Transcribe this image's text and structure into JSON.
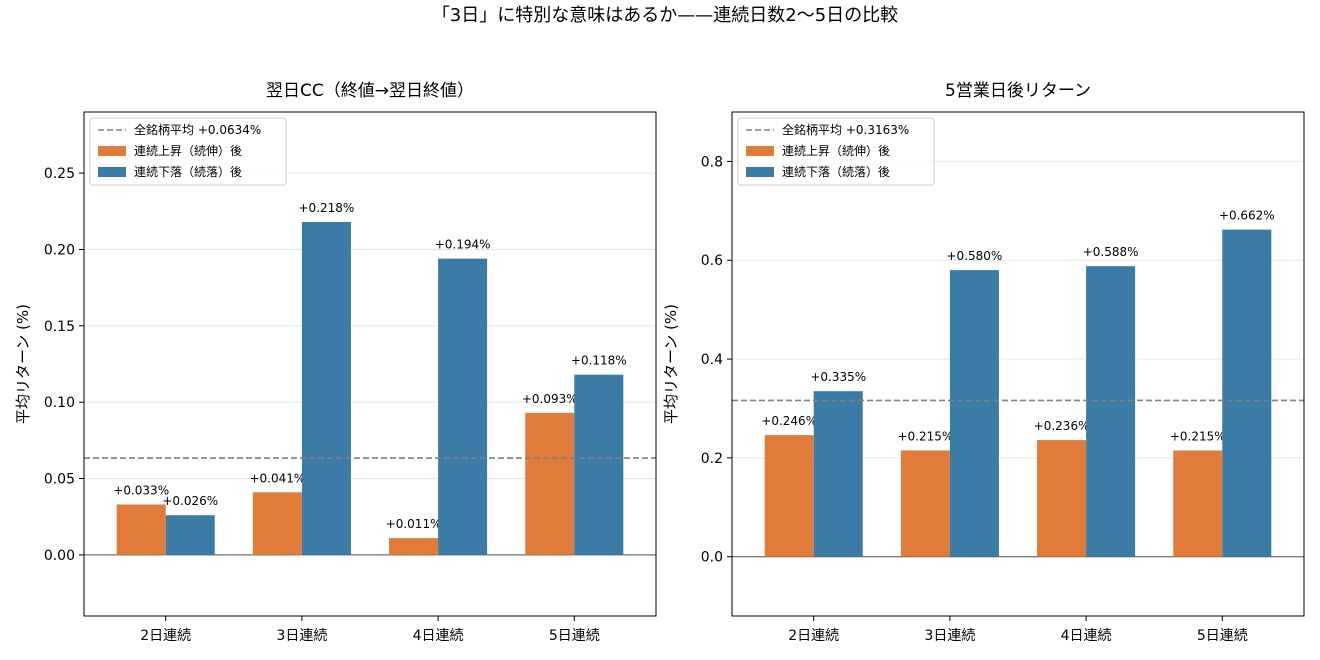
{
  "figure": {
    "title": "「3日」に特別な意味はあるか——連続日数2〜5日の比較"
  },
  "colors": {
    "up": "#e07b39",
    "down": "#3a7ca5",
    "mean_line": "#808080",
    "grid": "#e6e6e6"
  },
  "chart_data": [
    {
      "type": "bar",
      "title": "翌日CC（終値→翌日終値）",
      "ylabel": "平均リターン (%)",
      "xlabel": "",
      "categories": [
        "2日連続",
        "3日連続",
        "4日連続",
        "5日連続"
      ],
      "ylim": [
        -0.04,
        0.29
      ],
      "yticks": [
        0.0,
        0.05,
        0.1,
        0.15,
        0.2,
        0.25
      ],
      "ytick_labels": [
        "0.00",
        "0.05",
        "0.10",
        "0.15",
        "0.20",
        "0.25"
      ],
      "grid": "horizontal",
      "legend_loc": "upper left",
      "reference_line": {
        "label": "全銘柄平均 +0.0634%",
        "value": 0.0634
      },
      "series": [
        {
          "name": "連続上昇（続伸）後",
          "color": "#e07b39",
          "values": [
            0.033,
            0.041,
            0.011,
            0.093
          ],
          "labels": [
            "+0.033%",
            "+0.041%",
            "+0.011%",
            "+0.093%"
          ]
        },
        {
          "name": "連続下落（続落）後",
          "color": "#3a7ca5",
          "values": [
            0.026,
            0.218,
            0.194,
            0.118
          ],
          "labels": [
            "+0.026%",
            "+0.218%",
            "+0.194%",
            "+0.118%"
          ]
        }
      ]
    },
    {
      "type": "bar",
      "title": "5営業日後リターン",
      "ylabel": "平均リターン (%)",
      "xlabel": "",
      "categories": [
        "2日連続",
        "3日連続",
        "4日連続",
        "5日連続"
      ],
      "ylim": [
        -0.12,
        0.9
      ],
      "yticks": [
        0.0,
        0.2,
        0.4,
        0.6,
        0.8
      ],
      "ytick_labels": [
        "0.0",
        "0.2",
        "0.4",
        "0.6",
        "0.8"
      ],
      "grid": "horizontal",
      "legend_loc": "upper left",
      "reference_line": {
        "label": "全銘柄平均 +0.3163%",
        "value": 0.3163
      },
      "series": [
        {
          "name": "連続上昇（続伸）後",
          "color": "#e07b39",
          "values": [
            0.246,
            0.215,
            0.236,
            0.215
          ],
          "labels": [
            "+0.246%",
            "+0.215%",
            "+0.236%",
            "+0.215%"
          ]
        },
        {
          "name": "連続下落（続落）後",
          "color": "#3a7ca5",
          "values": [
            0.335,
            0.58,
            0.588,
            0.662
          ],
          "labels": [
            "+0.335%",
            "+0.580%",
            "+0.588%",
            "+0.662%"
          ]
        }
      ]
    }
  ]
}
